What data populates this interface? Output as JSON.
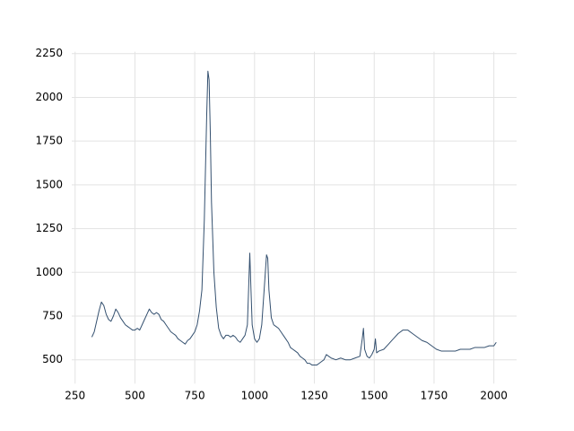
{
  "chart_data": {
    "type": "line",
    "x": [
      320,
      330,
      340,
      350,
      360,
      370,
      380,
      390,
      400,
      410,
      420,
      430,
      440,
      450,
      460,
      470,
      480,
      490,
      500,
      510,
      520,
      530,
      540,
      550,
      560,
      570,
      580,
      590,
      600,
      610,
      620,
      630,
      640,
      650,
      660,
      670,
      680,
      690,
      700,
      710,
      720,
      730,
      740,
      750,
      760,
      770,
      780,
      790,
      800,
      805,
      810,
      815,
      820,
      830,
      840,
      850,
      860,
      870,
      880,
      890,
      900,
      910,
      920,
      930,
      940,
      950,
      960,
      970,
      975,
      980,
      985,
      990,
      1000,
      1010,
      1020,
      1030,
      1040,
      1050,
      1055,
      1060,
      1070,
      1080,
      1090,
      1100,
      1110,
      1120,
      1130,
      1140,
      1150,
      1160,
      1170,
      1180,
      1190,
      1200,
      1210,
      1220,
      1230,
      1240,
      1250,
      1260,
      1270,
      1280,
      1290,
      1300,
      1310,
      1320,
      1340,
      1360,
      1380,
      1400,
      1420,
      1440,
      1450,
      1455,
      1460,
      1470,
      1480,
      1490,
      1500,
      1505,
      1510,
      1520,
      1540,
      1560,
      1580,
      1600,
      1620,
      1640,
      1660,
      1680,
      1700,
      1720,
      1740,
      1760,
      1780,
      1800,
      1820,
      1840,
      1860,
      1880,
      1900,
      1920,
      1940,
      1960,
      1980,
      2000,
      2010
    ],
    "series": [
      {
        "color": "#34506f",
        "values": [
          630,
          660,
          720,
          780,
          830,
          810,
          760,
          730,
          720,
          750,
          790,
          770,
          740,
          720,
          700,
          690,
          680,
          670,
          670,
          680,
          670,
          700,
          730,
          760,
          790,
          770,
          760,
          770,
          760,
          730,
          720,
          700,
          680,
          660,
          650,
          640,
          620,
          610,
          600,
          590,
          610,
          620,
          640,
          660,
          700,
          780,
          900,
          1300,
          1900,
          2150,
          2100,
          1800,
          1400,
          1000,
          800,
          680,
          640,
          620,
          640,
          640,
          630,
          640,
          630,
          610,
          600,
          620,
          640,
          700,
          900,
          1110,
          900,
          700,
          620,
          600,
          620,
          700,
          900,
          1100,
          1080,
          900,
          740,
          700,
          690,
          680,
          660,
          640,
          620,
          600,
          570,
          560,
          550,
          540,
          520,
          510,
          500,
          480,
          480,
          470,
          470,
          470,
          480,
          490,
          500,
          530,
          520,
          510,
          500,
          510,
          500,
          500,
          510,
          520,
          620,
          680,
          560,
          520,
          510,
          530,
          560,
          620,
          540,
          550,
          560,
          590,
          620,
          650,
          670,
          670,
          650,
          630,
          610,
          600,
          580,
          560,
          550,
          550,
          550,
          550,
          560,
          560,
          560,
          570,
          570,
          570,
          580,
          580,
          600
        ]
      }
    ],
    "xlim": [
      236,
      2095
    ],
    "xticks": [
      250,
      500,
      750,
      1000,
      1250,
      1500,
      1750,
      2000
    ],
    "ylim": [
      364,
      2261
    ],
    "yticks": [
      500,
      750,
      1000,
      1250,
      1500,
      1750,
      2000,
      2250
    ],
    "grid": true
  }
}
